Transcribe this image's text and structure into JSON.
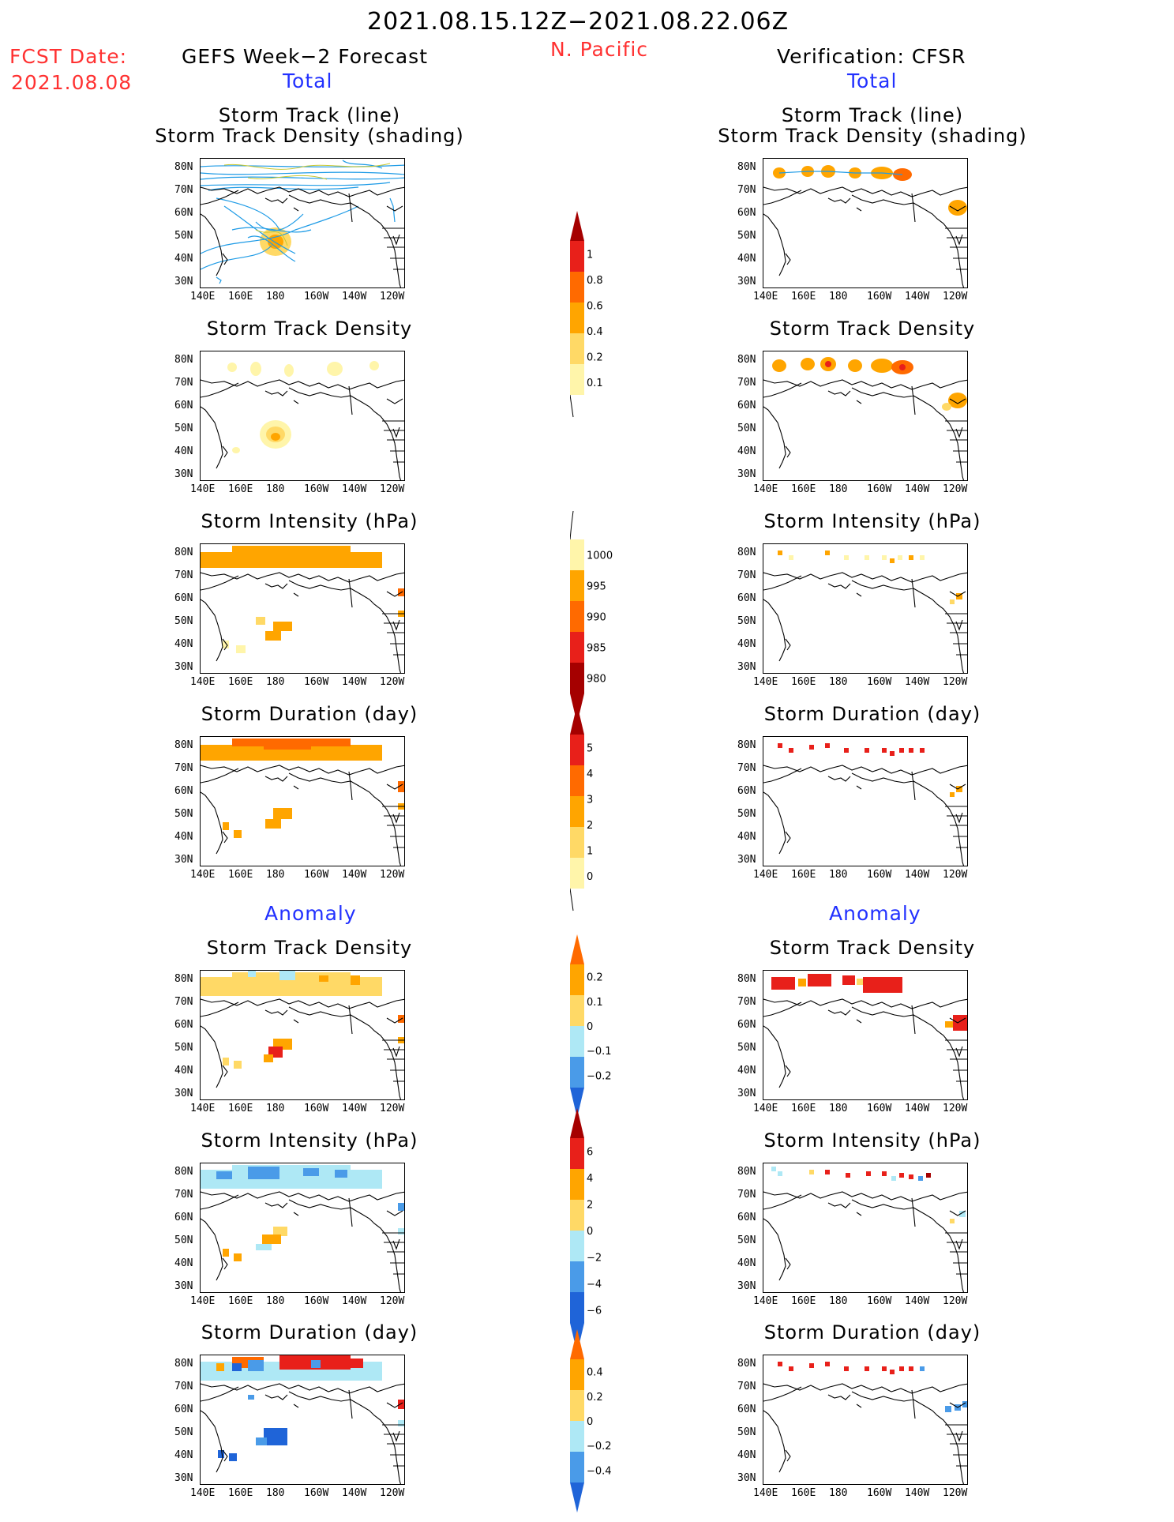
{
  "header": {
    "date_range": "2021.08.15.12Z−2021.08.22.06Z",
    "fcst_label": "FCST Date:",
    "fcst_date": "2021.08.08",
    "left_model": "GEFS Week−2 Forecast",
    "region": "N. Pacific",
    "right_model": "Verification: CFSR",
    "total_left": "Total",
    "total_right": "Total",
    "anomaly_left": "Anomaly",
    "anomaly_right": "Anomaly"
  },
  "axes": {
    "lat_labels": [
      "80N",
      "70N",
      "60N",
      "50N",
      "40N",
      "30N"
    ],
    "lon_labels": [
      "140E",
      "160E",
      "180",
      "160W",
      "140W",
      "120W"
    ]
  },
  "panels": {
    "track_title1": "Storm Track (line)",
    "track_title2": "Storm Track Density (shading)",
    "density_title": "Storm Track Density",
    "intensity_title": "Storm Intensity (hPa)",
    "duration_title": "Storm Duration (day)"
  },
  "colorbars": {
    "density_total": [
      "1",
      "0.8",
      "0.6",
      "0.4",
      "0.2",
      "0.1"
    ],
    "intensity_total": [
      "1000",
      "995",
      "990",
      "985",
      "980"
    ],
    "duration_total": [
      "5",
      "4",
      "3",
      "2",
      "1",
      "0"
    ],
    "density_anom": [
      "0.2",
      "0.1",
      "0",
      "−0.1",
      "−0.2"
    ],
    "intensity_anom": [
      "6",
      "4",
      "2",
      "0",
      "−2",
      "−4",
      "−6"
    ],
    "duration_anom": [
      "0.4",
      "0.2",
      "0",
      "−0.2",
      "−0.4"
    ]
  },
  "colors": {
    "title_red": "#ff3131",
    "title_blue": "#2231ff",
    "track_line": "#1e9be6",
    "yellow_light": "#fff5aa",
    "yellow": "#ffd966",
    "orange": "#ffa500",
    "orange_red": "#ff6a00",
    "red": "#e8201a",
    "dark_red": "#a50000",
    "light_blue": "#aee8f5",
    "blue": "#4a9be8",
    "dark_blue": "#1f64d8"
  }
}
